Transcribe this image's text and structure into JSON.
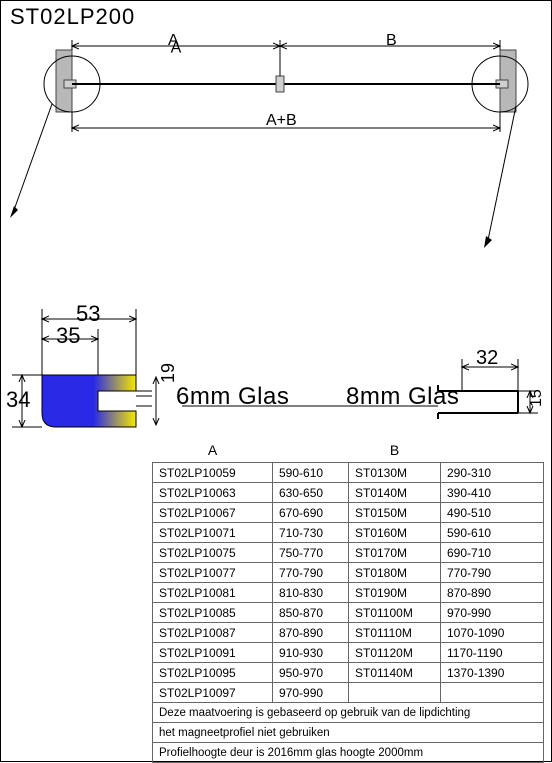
{
  "title": "ST02LP200",
  "top_diagram": {
    "labels": {
      "A": "A",
      "B": "B",
      "AB": "A+B"
    },
    "bracket_color": "#b8b8b8",
    "rod_color": "#000000",
    "circle_stroke": "#000"
  },
  "profile_left": {
    "width_outer": "53",
    "width_inner": "35",
    "height": "34",
    "gap": "19",
    "fill_gradient_from": "#2a2ae6",
    "fill_gradient_to": "#f7e900"
  },
  "profile_right": {
    "width": "32",
    "gap": "15"
  },
  "glass_labels": {
    "six": "6mm Glas",
    "eight": "8mm Glas"
  },
  "table": {
    "headerA": "A",
    "headerB": "B",
    "rows": [
      {
        "a": "ST02LP10059",
        "av": "590-610",
        "b": "ST0130M",
        "bv": "290-310"
      },
      {
        "a": "ST02LP10063",
        "av": "630-650",
        "b": "ST0140M",
        "bv": "390-410"
      },
      {
        "a": "ST02LP10067",
        "av": "670-690",
        "b": "ST0150M",
        "bv": "490-510"
      },
      {
        "a": "ST02LP10071",
        "av": "710-730",
        "b": "ST0160M",
        "bv": "590-610"
      },
      {
        "a": "ST02LP10075",
        "av": "750-770",
        "b": "ST0170M",
        "bv": "690-710"
      },
      {
        "a": "ST02LP10077",
        "av": "770-790",
        "b": "ST0180M",
        "bv": "770-790"
      },
      {
        "a": "ST02LP10081",
        "av": "810-830",
        "b": "ST0190M",
        "bv": "870-890"
      },
      {
        "a": "ST02LP10085",
        "av": "850-870",
        "b": "ST01100M",
        "bv": "970-990"
      },
      {
        "a": "ST02LP10087",
        "av": "870-890",
        "b": "ST01110M",
        "bv": "1070-1090"
      },
      {
        "a": "ST02LP10091",
        "av": "910-930",
        "b": "ST01120M",
        "bv": "1170-1190"
      },
      {
        "a": "ST02LP10095",
        "av": "950-970",
        "b": "ST01140M",
        "bv": "1370-1390"
      },
      {
        "a": "ST02LP10097",
        "av": "970-990",
        "b": "",
        "bv": ""
      }
    ],
    "note1": "Deze maatvoering is gebaseerd op gebruik van de lipdichting",
    "note2": "het magneetprofiel niet gebruiken",
    "note3": "Profielhoogte deur is 2016mm glas hoogte  2000mm"
  },
  "colors": {
    "border": "#000000",
    "text": "#000000",
    "table_border": "#666666"
  }
}
